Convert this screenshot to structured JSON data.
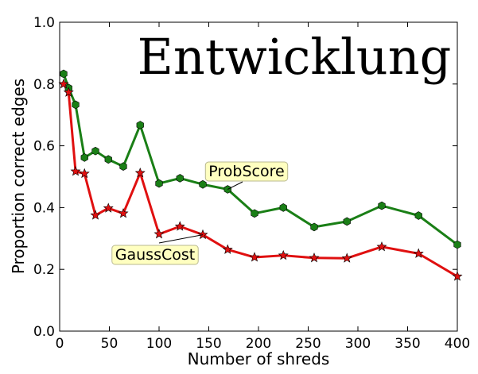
{
  "chart_data": {
    "type": "line",
    "title": "",
    "xlabel": "Number of shreds",
    "ylabel": "Proportion correct edges",
    "xlim": [
      0,
      400
    ],
    "ylim": [
      0.0,
      1.0
    ],
    "xticks": [
      "0",
      "50",
      "100",
      "150",
      "200",
      "250",
      "300",
      "350",
      "400"
    ],
    "yticks": [
      "0.0",
      "0.2",
      "0.4",
      "0.6",
      "0.8",
      "1.0"
    ],
    "grid": false,
    "word_image_text": "Entwicklung",
    "series": [
      {
        "name": "ProbScore",
        "color": "#1a7f16",
        "marker": "hexagon",
        "x": [
          4,
          9,
          16,
          25,
          36,
          49,
          64,
          81,
          100,
          121,
          144,
          169,
          196,
          225,
          256,
          289,
          324,
          361,
          400
        ],
        "y": [
          0.833,
          0.787,
          0.733,
          0.562,
          0.583,
          0.556,
          0.533,
          0.667,
          0.478,
          0.495,
          0.475,
          0.459,
          0.381,
          0.4,
          0.337,
          0.355,
          0.406,
          0.374,
          0.28
        ]
      },
      {
        "name": "GaussCost",
        "color": "#e01010",
        "marker": "star",
        "x": [
          4,
          9,
          16,
          25,
          36,
          49,
          64,
          81,
          100,
          121,
          144,
          169,
          196,
          225,
          256,
          289,
          324,
          361,
          400
        ],
        "y": [
          0.8,
          0.773,
          0.517,
          0.51,
          0.375,
          0.398,
          0.381,
          0.512,
          0.314,
          0.339,
          0.312,
          0.264,
          0.239,
          0.245,
          0.237,
          0.236,
          0.273,
          0.251,
          0.177
        ]
      }
    ],
    "annotations": [
      {
        "text": "ProbScore",
        "series": "ProbScore"
      },
      {
        "text": "GaussCost",
        "series": "GaussCost"
      }
    ]
  }
}
